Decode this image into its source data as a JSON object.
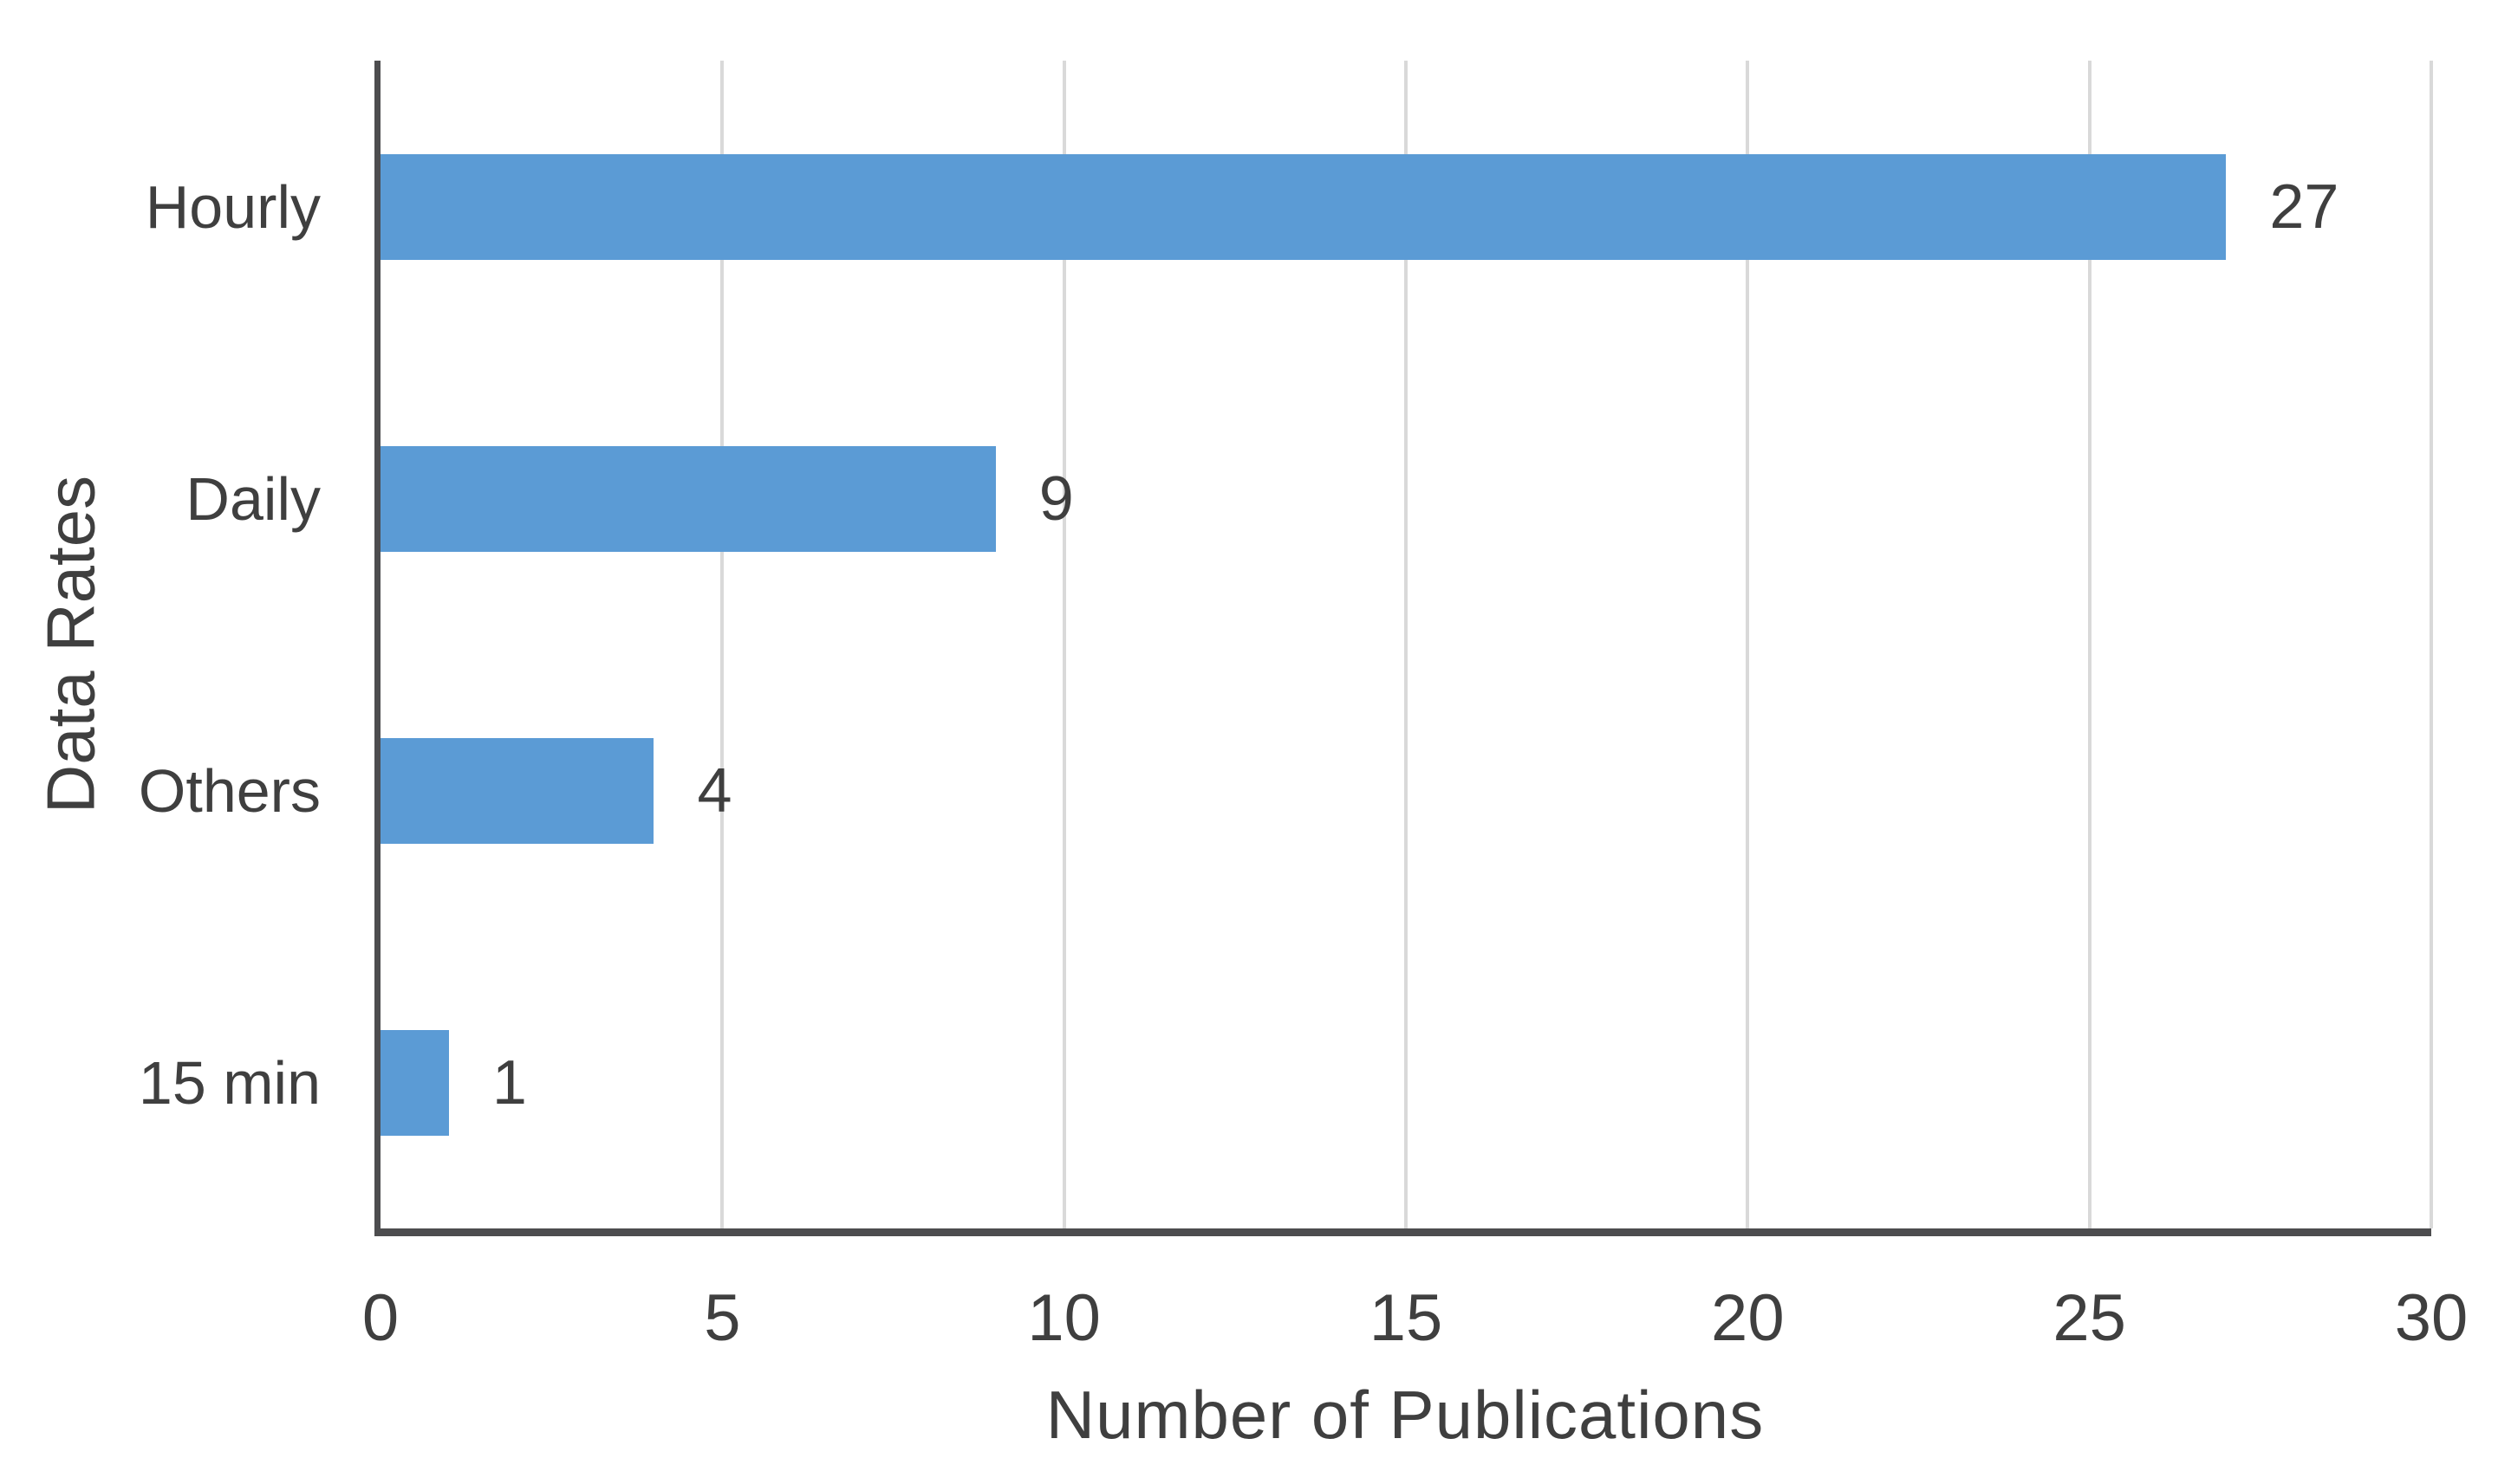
{
  "chart_data": {
    "type": "bar",
    "orientation": "horizontal",
    "title": "",
    "xlabel": "Number of Publications",
    "ylabel": "Data Rates",
    "categories": [
      "Hourly",
      "Daily",
      "Others",
      "15 min"
    ],
    "values": [
      27,
      9,
      4,
      1
    ],
    "data_labels": [
      "27",
      "9",
      "4",
      "1"
    ],
    "xlim": [
      0,
      30
    ],
    "x_ticks": [
      "0",
      "5",
      "10",
      "15",
      "20",
      "25",
      "30"
    ],
    "x_tick_values": [
      0,
      5,
      10,
      15,
      20,
      25,
      30
    ],
    "grid": "vertical-gridlines-on",
    "legend": "none",
    "colors": {
      "bar": "#5B9BD5",
      "axis_line": "#4d4d4f",
      "gridline": "#d9d9d9",
      "text": "#3f3f3f",
      "background": "#ffffff"
    }
  }
}
